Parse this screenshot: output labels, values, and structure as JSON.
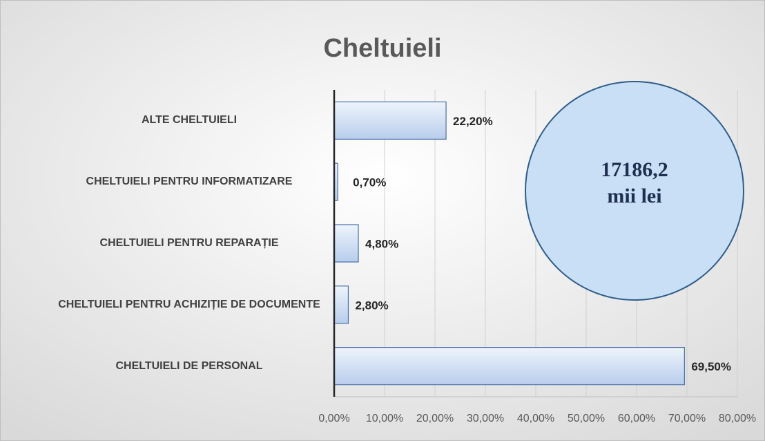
{
  "chart_data": {
    "type": "hbar",
    "title": "Cheltuieli",
    "categories": [
      "ALTE CHELTUIELI",
      "CHELTUIELI PENTRU INFORMATIZARE",
      "CHELTUIELI PENTRU REPARAȚIE",
      "CHELTUIELI PENTRU ACHIZIȚIE DE DOCUMENTE",
      "CHELTUIELI DE PERSONAL"
    ],
    "values": [
      22.2,
      0.7,
      4.8,
      2.8,
      69.5
    ],
    "value_labels": [
      "22,20%",
      "0,70%",
      "4,80%",
      "2,80%",
      "69,50%"
    ],
    "color": "#c9dbf2",
    "xlim": [
      0,
      80
    ],
    "xticks": [
      {
        "value": 0,
        "label": "0,00%"
      },
      {
        "value": 10,
        "label": "10,00%"
      },
      {
        "value": 20,
        "label": "20,00%"
      },
      {
        "value": 30,
        "label": "30,00%"
      },
      {
        "value": 40,
        "label": "40,00%"
      },
      {
        "value": 50,
        "label": "50,00%"
      },
      {
        "value": 60,
        "label": "60,00%"
      },
      {
        "value": 70,
        "label": "70,00%"
      },
      {
        "value": 80,
        "label": "80,00%"
      }
    ],
    "grid": true,
    "annotation": [
      "17186,2",
      "mii lei"
    ]
  }
}
